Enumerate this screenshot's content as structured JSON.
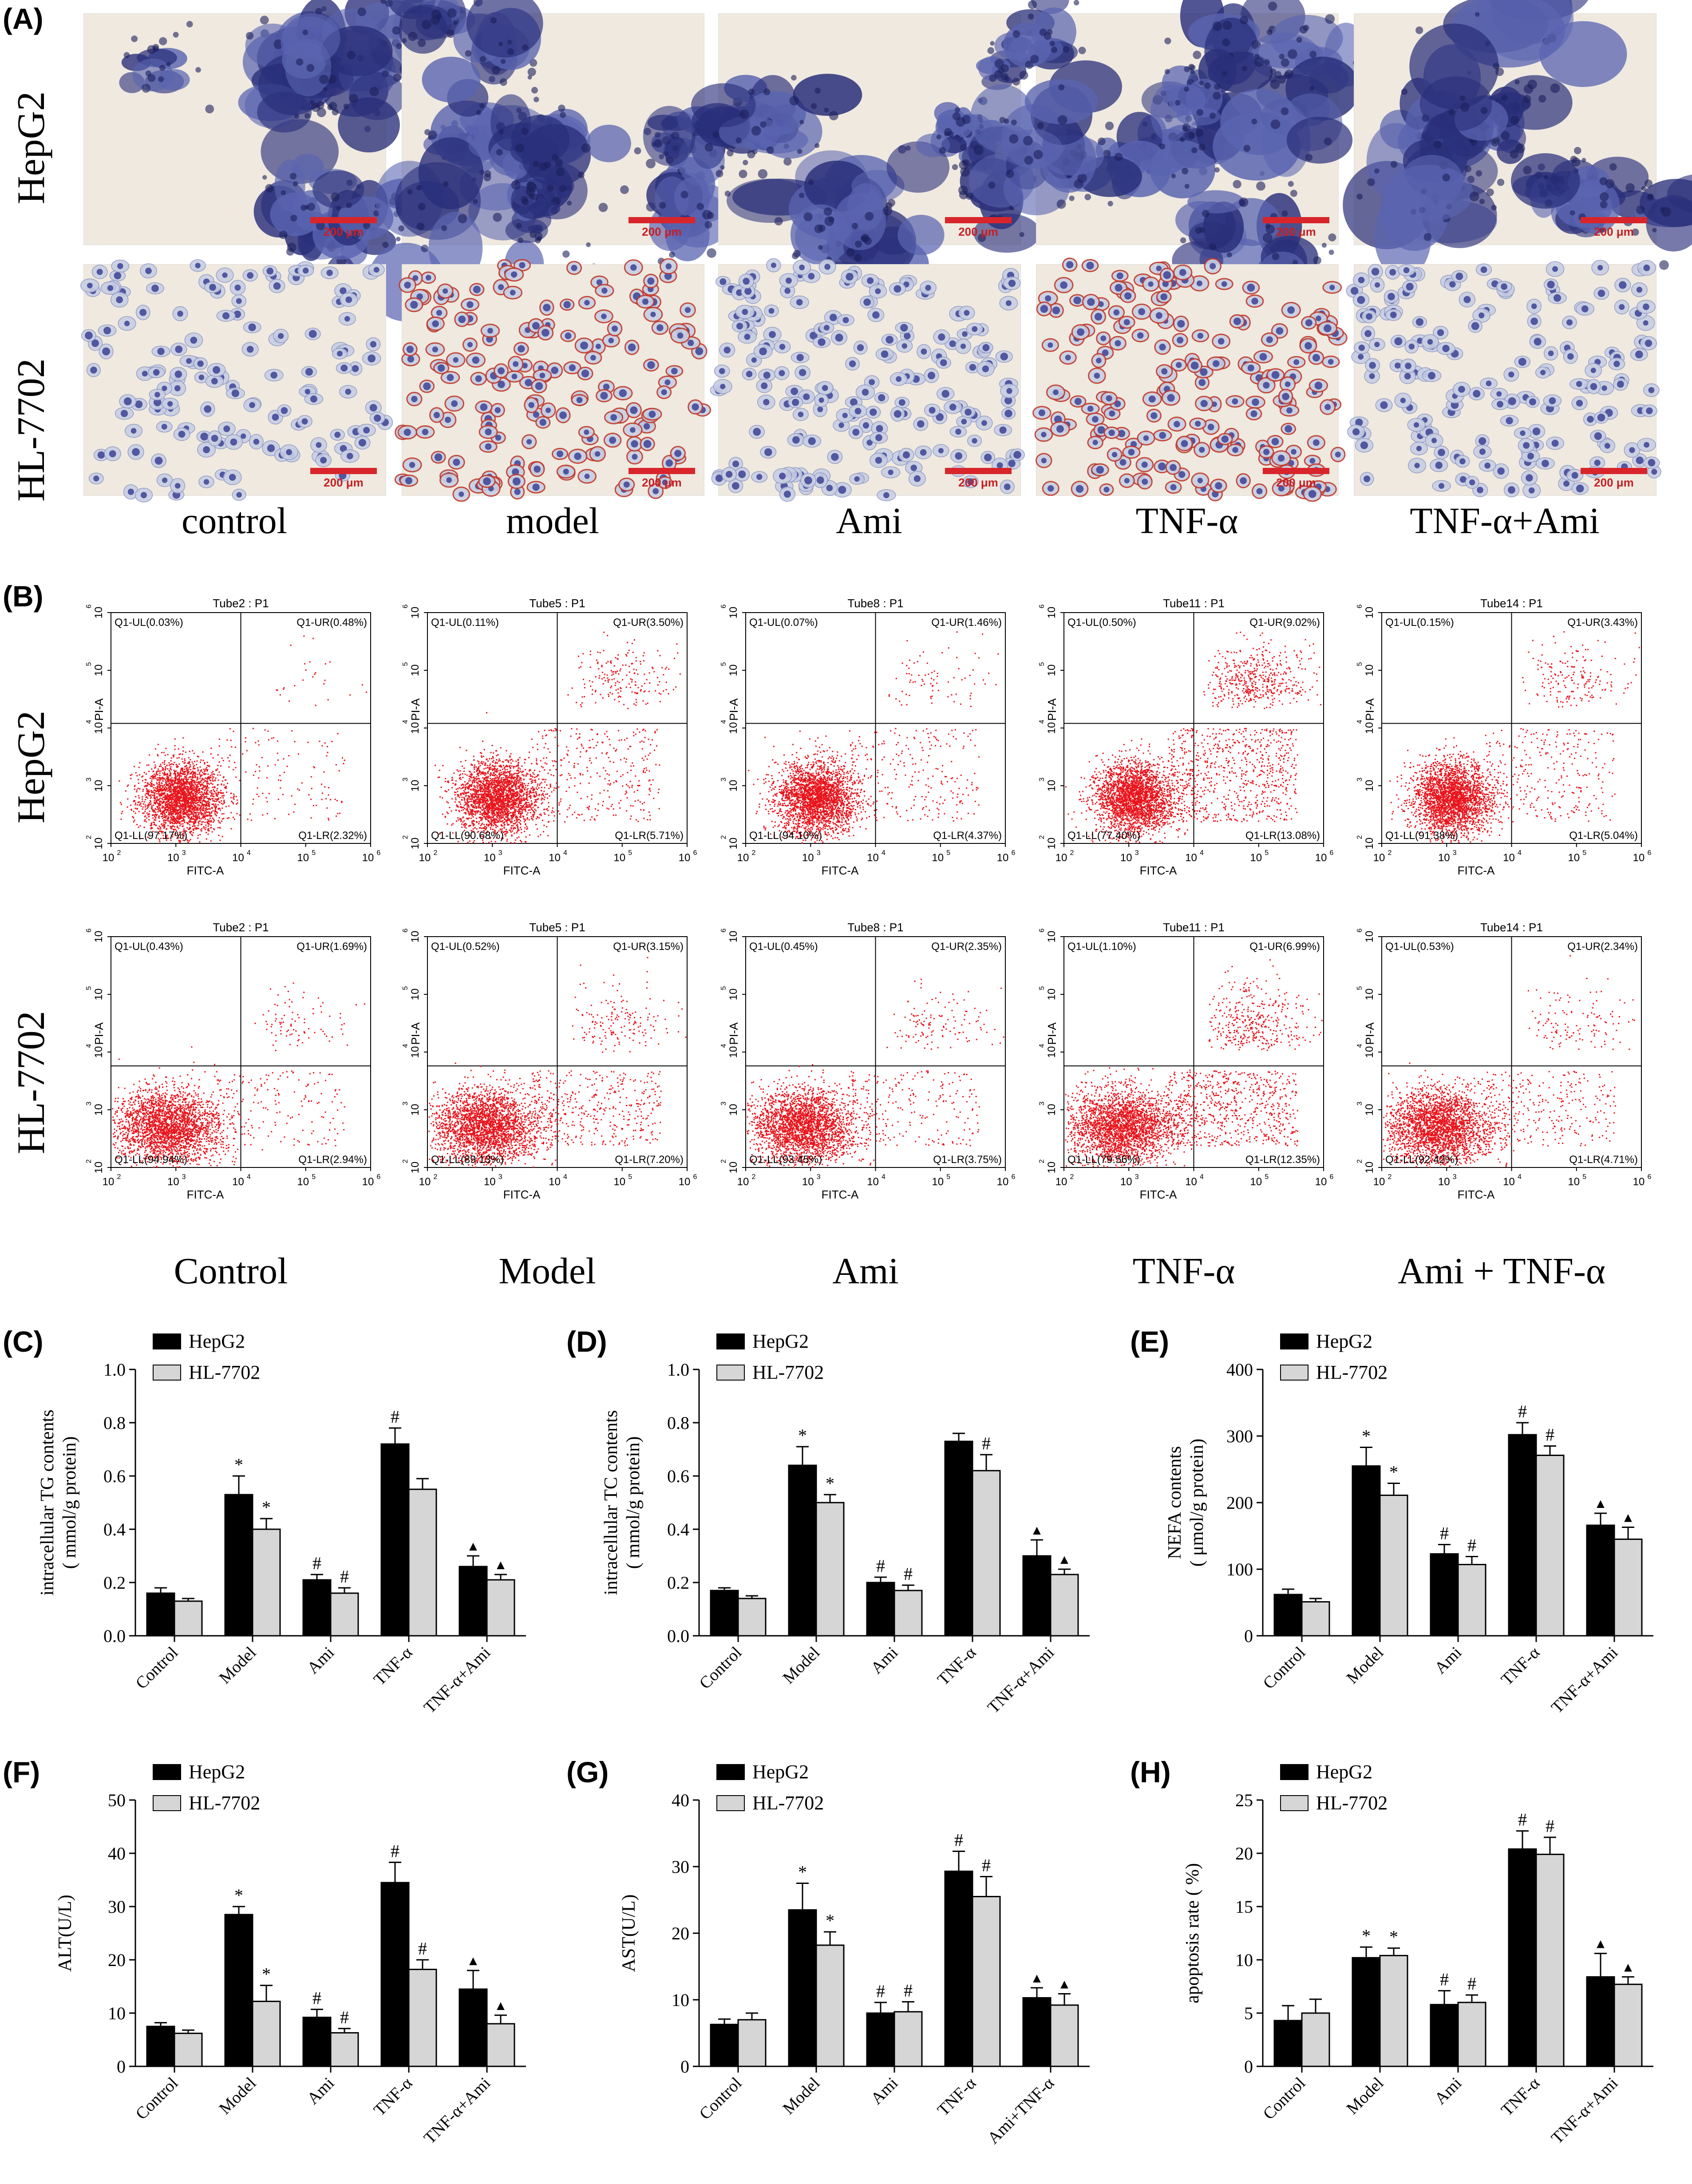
{
  "panel_a": {
    "letter": "(A)",
    "rows": [
      "HepG2",
      "HL-7702"
    ],
    "columns": [
      "control",
      "model",
      "Ami",
      "TNF-α",
      "TNF-α+Ami"
    ],
    "scale_text": "200 μm",
    "colors": {
      "stain_dark": "#2a2f7a",
      "stain_mid": "#5a64b0",
      "background": "#efe9df",
      "lipid_red": "#c0392b",
      "scale": "#d8252b"
    }
  },
  "panel_b": {
    "letter": "(B)",
    "rows": [
      "HepG2",
      "HL-7702"
    ],
    "columns": [
      "Control",
      "Model",
      "Ami",
      "TNF-α",
      "Ami + TNF-α"
    ],
    "x_axis_label": "FITC-A",
    "y_axis_label": "PI-A",
    "tick_labels": [
      "10",
      "2",
      "10",
      "3",
      "10",
      "4",
      "10",
      "5",
      "10",
      "6"
    ],
    "tick_pairs": [
      [
        "10",
        "2"
      ],
      [
        "10",
        "3"
      ],
      [
        "10",
        "4"
      ],
      [
        "10",
        "5"
      ],
      [
        "10",
        "6"
      ]
    ],
    "plots": [
      [
        {
          "title": "Tube2 : P1",
          "ul": "Q1-UL(0.03%)",
          "ur": "Q1-UR(0.48%)",
          "ll": "Q1-LL(97.17%)",
          "lr": "Q1-LR(2.32%)",
          "ur_v": 0.48,
          "lr_v": 2.32
        },
        {
          "title": "Tube5 : P1",
          "ul": "Q1-UL(0.11%)",
          "ur": "Q1-UR(3.50%)",
          "ll": "Q1-LL(90.68%)",
          "lr": "Q1-LR(5.71%)",
          "ur_v": 3.5,
          "lr_v": 5.71
        },
        {
          "title": "Tube8 : P1",
          "ul": "Q1-UL(0.07%)",
          "ur": "Q1-UR(1.46%)",
          "ll": "Q1-LL(94.10%)",
          "lr": "Q1-LR(4.37%)",
          "ur_v": 1.46,
          "lr_v": 4.37
        },
        {
          "title": "Tube11 : P1",
          "ul": "Q1-UL(0.50%)",
          "ur": "Q1-UR(9.02%)",
          "ll": "Q1-LL(77.40%)",
          "lr": "Q1-LR(13.08%)",
          "ur_v": 9.02,
          "lr_v": 13.08
        },
        {
          "title": "Tube14 : P1",
          "ul": "Q1-UL(0.15%)",
          "ur": "Q1-UR(3.43%)",
          "ll": "Q1-LL(91.38%)",
          "lr": "Q1-LR(5.04%)",
          "ur_v": 3.43,
          "lr_v": 5.04
        }
      ],
      [
        {
          "title": "Tube2 : P1",
          "ul": "Q1-UL(0.43%)",
          "ur": "Q1-UR(1.69%)",
          "ll": "Q1-LL(94.94%)",
          "lr": "Q1-LR(2.94%)",
          "ur_v": 1.69,
          "lr_v": 2.94
        },
        {
          "title": "Tube5 : P1",
          "ul": "Q1-UL(0.52%)",
          "ur": "Q1-UR(3.15%)",
          "ll": "Q1-LL(89.13%)",
          "lr": "Q1-LR(7.20%)",
          "ur_v": 3.15,
          "lr_v": 7.2
        },
        {
          "title": "Tube8 : P1",
          "ul": "Q1-UL(0.45%)",
          "ur": "Q1-UR(2.35%)",
          "ll": "Q1-LL(93.45%)",
          "lr": "Q1-LR(3.75%)",
          "ur_v": 2.35,
          "lr_v": 3.75
        },
        {
          "title": "Tube11 : P1",
          "ul": "Q1-UL(1.10%)",
          "ur": "Q1-UR(6.99%)",
          "ll": "Q1-LL(79.56%)",
          "lr": "Q1-LR(12.35%)",
          "ur_v": 6.99,
          "lr_v": 12.35
        },
        {
          "title": "Tube14 : P1",
          "ul": "Q1-UL(0.53%)",
          "ur": "Q1-UR(2.34%)",
          "ll": "Q1-LL(92.42%)",
          "lr": "Q1-LR(4.71%)",
          "ur_v": 2.34,
          "lr_v": 4.71
        }
      ]
    ],
    "dot_color": "#e8141c"
  },
  "colors": {
    "hepg2": "#000000",
    "hl7702": "#d6d6d6"
  },
  "chart_data": [
    {
      "type": "bar",
      "letter": "(C)",
      "ylabel_lines": [
        "intracellular TG contents",
        "( mmol/g protein)"
      ],
      "categories": [
        "Control",
        "Model",
        "Ami",
        "TNF-α",
        "TNF-α+Ami"
      ],
      "ylim": [
        0,
        1.0
      ],
      "yticks": [
        "0.0",
        "0.2",
        "0.4",
        "0.6",
        "0.8",
        "1.0"
      ],
      "ytick_values": [
        0,
        0.2,
        0.4,
        0.6,
        0.8,
        1.0
      ],
      "legend": [
        "HepG2",
        "HL-7702"
      ],
      "series": [
        {
          "name": "HepG2",
          "values": [
            0.16,
            0.53,
            0.21,
            0.72,
            0.26
          ],
          "errors": [
            0.02,
            0.07,
            0.02,
            0.06,
            0.04
          ],
          "marks": [
            "",
            "*",
            "#",
            "#",
            "▲"
          ]
        },
        {
          "name": "HL-7702",
          "values": [
            0.13,
            0.4,
            0.16,
            0.55,
            0.21
          ],
          "errors": [
            0.01,
            0.04,
            0.02,
            0.04,
            0.02
          ],
          "marks": [
            "",
            "*",
            "#",
            "",
            "▲"
          ]
        }
      ]
    },
    {
      "type": "bar",
      "letter": "(D)",
      "ylabel_lines": [
        "intracellular TC contents",
        "( mmol/g protein)"
      ],
      "categories": [
        "Control",
        "Model",
        "Ami",
        "TNF-α",
        "TNF-α+Ami"
      ],
      "ylim": [
        0,
        1.0
      ],
      "yticks": [
        "0.0",
        "0.2",
        "0.4",
        "0.6",
        "0.8",
        "1.0"
      ],
      "ytick_values": [
        0,
        0.2,
        0.4,
        0.6,
        0.8,
        1.0
      ],
      "legend": [
        "HepG2",
        "HL-7702"
      ],
      "series": [
        {
          "name": "HepG2",
          "values": [
            0.17,
            0.64,
            0.2,
            0.73,
            0.3
          ],
          "errors": [
            0.01,
            0.07,
            0.02,
            0.03,
            0.06
          ],
          "marks": [
            "",
            "*",
            "#",
            "",
            "▲"
          ]
        },
        {
          "name": "HL-7702",
          "values": [
            0.14,
            0.5,
            0.17,
            0.62,
            0.23
          ],
          "errors": [
            0.01,
            0.03,
            0.02,
            0.06,
            0.02
          ],
          "marks": [
            "",
            "*",
            "#",
            "#",
            "▲"
          ]
        }
      ]
    },
    {
      "type": "bar",
      "letter": "(E)",
      "ylabel_lines": [
        "NEFA contents",
        "( μmol/g protein)"
      ],
      "categories": [
        "Control",
        "Model",
        "Ami",
        "TNF-α",
        "TNF-α+Ami"
      ],
      "ylim": [
        0,
        400
      ],
      "yticks": [
        "0",
        "100",
        "200",
        "300",
        "400"
      ],
      "ytick_values": [
        0,
        100,
        200,
        300,
        400
      ],
      "legend": [
        "HepG2",
        "HL-7702"
      ],
      "series": [
        {
          "name": "HepG2",
          "values": [
            62,
            255,
            123,
            302,
            166
          ],
          "errors": [
            8,
            28,
            14,
            18,
            18
          ],
          "marks": [
            "",
            "*",
            "#",
            "#",
            "▲"
          ]
        },
        {
          "name": "HL-7702",
          "values": [
            51,
            211,
            107,
            271,
            145
          ],
          "errors": [
            5,
            18,
            12,
            14,
            18
          ],
          "marks": [
            "",
            "*",
            "#",
            "#",
            "▲"
          ]
        }
      ]
    },
    {
      "type": "bar",
      "letter": "(F)",
      "ylabel_lines": [
        "ALT(U/L)"
      ],
      "categories": [
        "Control",
        "Model",
        "Ami",
        "TNF-α",
        "TNF-α+Ami"
      ],
      "ylim": [
        0,
        50
      ],
      "yticks": [
        "0",
        "10",
        "20",
        "30",
        "40",
        "50"
      ],
      "ytick_values": [
        0,
        10,
        20,
        30,
        40,
        50
      ],
      "legend": [
        "HepG2",
        "HL-7702"
      ],
      "series": [
        {
          "name": "HepG2",
          "values": [
            7.5,
            28.5,
            9.2,
            34.5,
            14.5
          ],
          "errors": [
            0.7,
            1.5,
            1.5,
            3.8,
            3.5
          ],
          "marks": [
            "",
            "*",
            "#",
            "#",
            "▲"
          ]
        },
        {
          "name": "HL-7702",
          "values": [
            6.2,
            12.2,
            6.3,
            18.2,
            8.0
          ],
          "errors": [
            0.6,
            3.0,
            0.8,
            1.8,
            1.6
          ],
          "marks": [
            "",
            "*",
            "#",
            "#",
            "▲"
          ]
        }
      ]
    },
    {
      "type": "bar",
      "letter": "(G)",
      "ylabel_lines": [
        "AST(U/L)"
      ],
      "categories": [
        "Control",
        "Model",
        "Ami",
        "TNF-α",
        "Ami+TNF-α"
      ],
      "ylim": [
        0,
        40
      ],
      "yticks": [
        "0",
        "10",
        "20",
        "30",
        "40"
      ],
      "ytick_values": [
        0,
        10,
        20,
        30,
        40
      ],
      "legend": [
        "HepG2",
        "HL-7702"
      ],
      "series": [
        {
          "name": "HepG2",
          "values": [
            6.3,
            23.5,
            8.0,
            29.3,
            10.3
          ],
          "errors": [
            0.8,
            4.0,
            1.6,
            3.0,
            1.5
          ],
          "marks": [
            "",
            "*",
            "#",
            "#",
            "▲"
          ]
        },
        {
          "name": "HL-7702",
          "values": [
            7.0,
            18.2,
            8.2,
            25.5,
            9.2
          ],
          "errors": [
            1.0,
            2.0,
            1.5,
            3.0,
            1.7
          ],
          "marks": [
            "",
            "*",
            "#",
            "#",
            "▲"
          ]
        }
      ]
    },
    {
      "type": "bar",
      "letter": "(H)",
      "ylabel_lines": [
        "apoptosis rate ( %)"
      ],
      "categories": [
        "Control",
        "Model",
        "Ami",
        "TNF-α",
        "TNF-α+Ami"
      ],
      "ylim": [
        0,
        25
      ],
      "yticks": [
        "0",
        "5",
        "10",
        "15",
        "20",
        "25"
      ],
      "ytick_values": [
        0,
        5,
        10,
        15,
        20,
        25
      ],
      "legend": [
        "HepG2",
        "HL-7702"
      ],
      "series": [
        {
          "name": "HepG2",
          "values": [
            4.3,
            10.2,
            5.8,
            20.4,
            8.4
          ],
          "errors": [
            1.4,
            1.0,
            1.3,
            1.7,
            2.2
          ],
          "marks": [
            "",
            "*",
            "#",
            "#",
            "▲"
          ]
        },
        {
          "name": "HL-7702",
          "values": [
            5.0,
            10.4,
            6.0,
            19.9,
            7.7
          ],
          "errors": [
            1.3,
            0.7,
            0.7,
            1.6,
            0.7
          ],
          "marks": [
            "",
            "*",
            "#",
            "#",
            "▲"
          ]
        }
      ]
    }
  ]
}
